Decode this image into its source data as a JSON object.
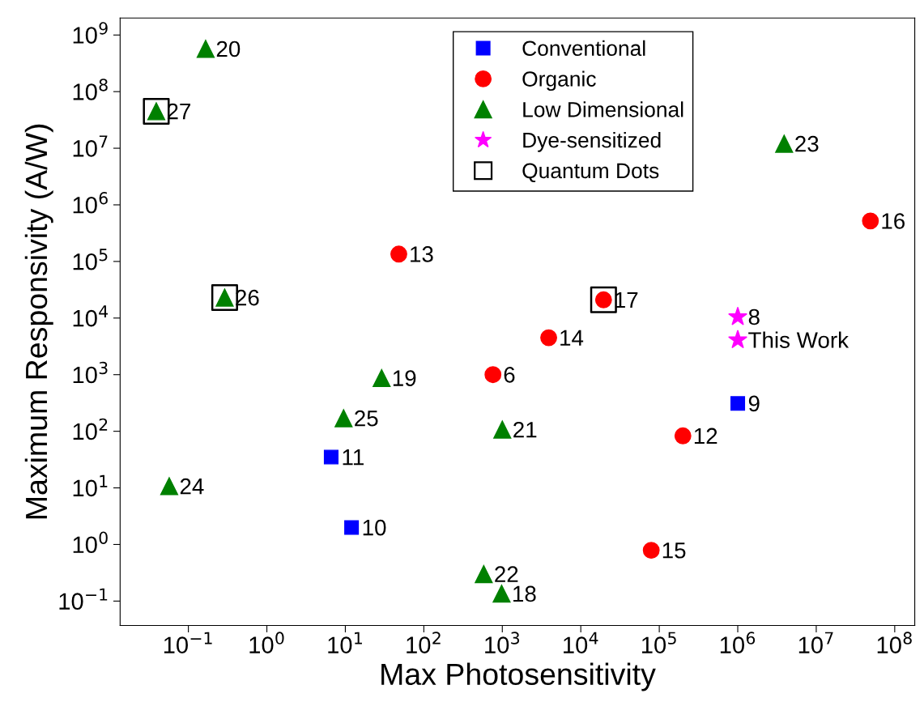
{
  "chart_data": {
    "type": "scatter",
    "xlabel": "Max Photosensitivity",
    "ylabel": "Maximum Responsivity (A/W)",
    "log": "xy",
    "grid": false,
    "legend": "top",
    "xlim": [
      0.0135,
      180000000.0
    ],
    "ylim": [
      0.037,
      2000000000.0
    ],
    "xticks": [
      {
        "value": 0.1,
        "label": "10$^{−1}$"
      },
      {
        "value": 1,
        "label": "10$^{0}$"
      },
      {
        "value": 10,
        "label": "10$^{1}$"
      },
      {
        "value": 100,
        "label": "10$^{2}$"
      },
      {
        "value": 1000,
        "label": "10$^{3}$"
      },
      {
        "value": 10000,
        "label": "10$^{4}$"
      },
      {
        "value": 100000,
        "label": "10$^{5}$"
      },
      {
        "value": 1000000,
        "label": "10$^{6}$"
      },
      {
        "value": 10000000,
        "label": "10$^{7}$"
      },
      {
        "value": 100000000,
        "label": "10$^{8}$"
      }
    ],
    "yticks": [
      {
        "value": 0.1,
        "label": "10$^{−1}$"
      },
      {
        "value": 1,
        "label": "10$^{0}$"
      },
      {
        "value": 10,
        "label": "10$^{1}$"
      },
      {
        "value": 100,
        "label": "10$^{2}$"
      },
      {
        "value": 1000,
        "label": "10$^{3}$"
      },
      {
        "value": 10000,
        "label": "10$^{4}$"
      },
      {
        "value": 100000,
        "label": "10$^{5}$"
      },
      {
        "value": 1000000,
        "label": "10$^{6}$"
      },
      {
        "value": 10000000,
        "label": "10$^{7}$"
      },
      {
        "value": 100000000,
        "label": "10$^{8}$"
      },
      {
        "value": 1000000000,
        "label": "10$^{9}$"
      }
    ],
    "series": [
      {
        "name": "Conventional",
        "color": "#0000ff",
        "marker": "square",
        "x": [
          1000000,
          6.6,
          12
        ],
        "values": [
          310,
          35,
          2
        ]
      },
      {
        "name": "Organic",
        "color": "#ff0000",
        "marker": "circle",
        "x": [
          49000000,
          48,
          19500,
          3900,
          760,
          200000,
          79000
        ],
        "values": [
          520000,
          135000,
          21000,
          4500,
          1000,
          83,
          0.79
        ]
      },
      {
        "name": "Low Dimensional",
        "color": "#008000",
        "marker": "triangle",
        "x": [
          0.166,
          0.039,
          3900000,
          0.29,
          29,
          9.5,
          1000,
          0.057,
          580,
          980
        ],
        "values": [
          570000000,
          45000000,
          12000000,
          23000,
          870,
          170,
          107,
          10.7,
          0.3,
          0.135
        ]
      },
      {
        "name": "Dye-sensitized",
        "color": "#ff00ff",
        "marker": "star",
        "x": [
          1000000,
          1000000
        ],
        "values": [
          10500,
          4100
        ]
      },
      {
        "name": "Quantum Dots",
        "color": "#000000",
        "marker": "square",
        "x": [
          0.039,
          0.29,
          19500
        ],
        "values": [
          45000000,
          23000,
          21000
        ]
      }
    ],
    "annotations": [
      {
        "text": "20",
        "x": 0.166,
        "y": 570000000
      },
      {
        "text": "27",
        "x": 0.039,
        "y": 45000000
      },
      {
        "text": "23",
        "x": 3900000,
        "y": 12000000
      },
      {
        "text": "16",
        "x": 49000000,
        "y": 520000
      },
      {
        "text": "13",
        "x": 48,
        "y": 135000
      },
      {
        "text": "26",
        "x": 0.29,
        "y": 23000
      },
      {
        "text": "17",
        "x": 19500,
        "y": 21000
      },
      {
        "text": "8",
        "x": 1000000,
        "y": 10500
      },
      {
        "text": "This Work",
        "x": 1000000,
        "y": 4100
      },
      {
        "text": "14",
        "x": 3900,
        "y": 4500
      },
      {
        "text": "6",
        "x": 760,
        "y": 1000
      },
      {
        "text": "19",
        "x": 29,
        "y": 870
      },
      {
        "text": "9",
        "x": 1000000,
        "y": 310
      },
      {
        "text": "25",
        "x": 9.5,
        "y": 170
      },
      {
        "text": "21",
        "x": 1000,
        "y": 107
      },
      {
        "text": "12",
        "x": 200000,
        "y": 83
      },
      {
        "text": "11",
        "x": 6.6,
        "y": 35
      },
      {
        "text": "24",
        "x": 0.057,
        "y": 10.7
      },
      {
        "text": "10",
        "x": 12,
        "y": 2
      },
      {
        "text": "15",
        "x": 79000,
        "y": 0.79
      },
      {
        "text": "22",
        "x": 580,
        "y": 0.3
      },
      {
        "text": "18",
        "x": 980,
        "y": 0.135
      }
    ]
  }
}
